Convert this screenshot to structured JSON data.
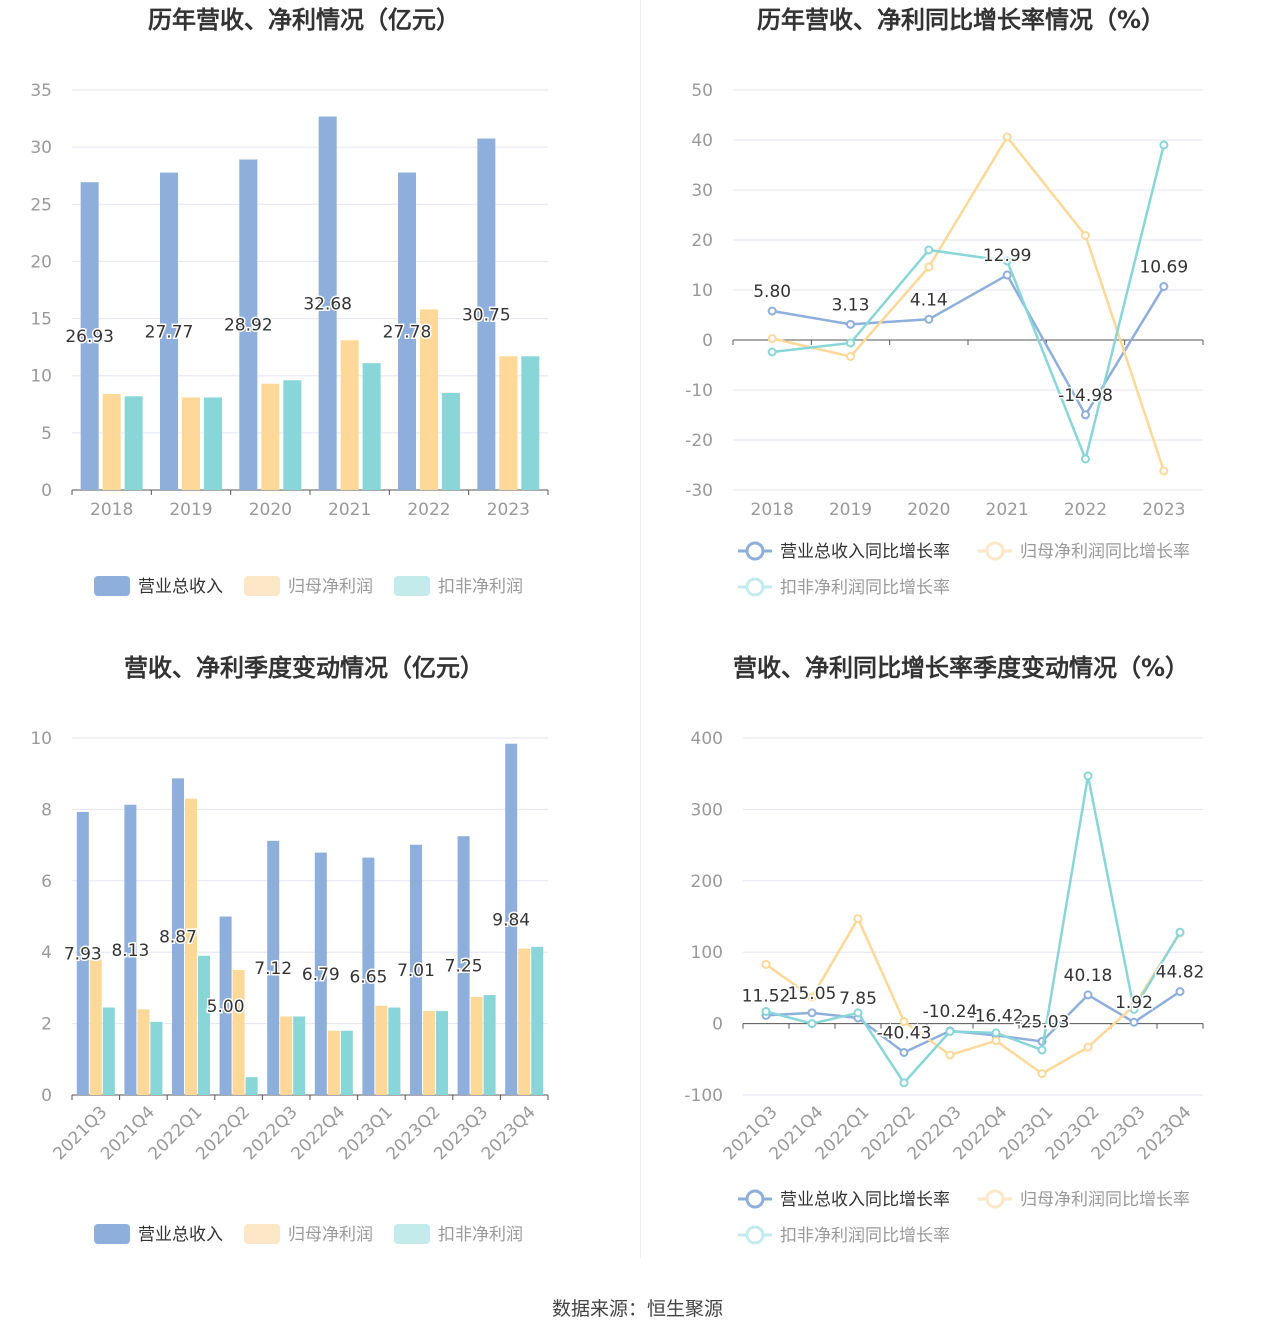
{
  "colors": {
    "revenue": "#8eaedc",
    "parent_profit": "#fdd898",
    "deducted_profit": "#88d6d8",
    "axis": "#555555",
    "grid": "#e2e6f0",
    "label": "#999999"
  },
  "source_text": "数据来源：恒生聚源",
  "chart_data": [
    {
      "type": "bar",
      "title": "历年营收、净利情况（亿元）",
      "categories": [
        "2018",
        "2019",
        "2020",
        "2021",
        "2022",
        "2023"
      ],
      "ylim": [
        0,
        35
      ],
      "yticks": [
        "0",
        "5",
        "10",
        "15",
        "20",
        "25",
        "30",
        "35"
      ],
      "series": [
        {
          "name": "营业总收入",
          "values": [
            26.93,
            27.77,
            28.92,
            32.68,
            27.78,
            30.75
          ],
          "labels": [
            "26.93",
            "27.77",
            "28.92",
            "32.68",
            "27.78",
            "30.75"
          ]
        },
        {
          "name": "归母净利润",
          "values": [
            8.4,
            8.1,
            9.3,
            13.1,
            15.8,
            11.7
          ]
        },
        {
          "name": "扣非净利润",
          "values": [
            8.2,
            8.1,
            9.6,
            11.1,
            8.5,
            11.7
          ]
        }
      ],
      "legend": "bottom",
      "grid": true
    },
    {
      "type": "line",
      "title": "历年营收、净利同比增长率情况（%）",
      "categories": [
        "2018",
        "2019",
        "2020",
        "2021",
        "2022",
        "2023"
      ],
      "ylim": [
        -30,
        50
      ],
      "yticks": [
        "-30",
        "-20",
        "-10",
        "0",
        "10",
        "20",
        "30",
        "40",
        "50"
      ],
      "series": [
        {
          "name": "营业总收入同比增长率",
          "values": [
            5.8,
            3.13,
            4.14,
            12.99,
            -14.98,
            10.69
          ],
          "labels": [
            "5.80",
            "3.13",
            "4.14",
            "12.99",
            "-14.98",
            "10.69"
          ]
        },
        {
          "name": "归母净利润同比增长率",
          "values": [
            0.3,
            -3.3,
            14.6,
            40.6,
            20.9,
            -26.2
          ]
        },
        {
          "name": "扣非净利润同比增长率",
          "values": [
            -2.4,
            -0.6,
            18.0,
            15.8,
            -23.8,
            39.0
          ]
        }
      ],
      "legend": "bottom",
      "grid": true
    },
    {
      "type": "bar",
      "title": "营收、净利季度变动情况（亿元）",
      "categories": [
        "2021Q3",
        "2021Q4",
        "2022Q1",
        "2022Q2",
        "2022Q3",
        "2022Q4",
        "2023Q1",
        "2023Q2",
        "2023Q3",
        "2023Q4"
      ],
      "ylim": [
        0,
        10
      ],
      "yticks": [
        "0",
        "2",
        "4",
        "6",
        "8",
        "10"
      ],
      "series": [
        {
          "name": "营业总收入",
          "values": [
            7.93,
            8.13,
            8.87,
            5.0,
            7.12,
            6.79,
            6.65,
            7.01,
            7.25,
            9.84
          ],
          "labels": [
            "7.93",
            "8.13",
            "8.87",
            "5.00",
            "7.12",
            "6.79",
            "6.65",
            "7.01",
            "7.25",
            "9.84"
          ]
        },
        {
          "name": "归母净利润",
          "values": [
            3.8,
            2.4,
            8.3,
            3.5,
            2.2,
            1.8,
            2.5,
            2.35,
            2.75,
            4.1
          ]
        },
        {
          "name": "扣非净利润",
          "values": [
            2.45,
            2.05,
            3.9,
            0.5,
            2.2,
            1.8,
            2.45,
            2.35,
            2.8,
            4.15
          ]
        }
      ],
      "legend": "bottom",
      "grid": true
    },
    {
      "type": "line",
      "title": "营收、净利同比增长率季度变动情况（%）",
      "categories": [
        "2021Q3",
        "2021Q4",
        "2022Q1",
        "2022Q2",
        "2022Q3",
        "2022Q4",
        "2023Q1",
        "2023Q2",
        "2023Q3",
        "2023Q4"
      ],
      "ylim": [
        -100,
        400
      ],
      "yticks": [
        "-100",
        "0",
        "100",
        "200",
        "300",
        "400"
      ],
      "series": [
        {
          "name": "营业总收入同比增长率",
          "values": [
            11.52,
            15.05,
            7.85,
            -40.43,
            -10.24,
            -16.42,
            -25.03,
            40.18,
            1.92,
            44.82
          ],
          "labels": [
            "11.52",
            "15.05",
            "7.85",
            "-40.43",
            "-10.24",
            "-16.42",
            "-25.03",
            "40.18",
            "1.92",
            "44.82"
          ]
        },
        {
          "name": "归母净利润同比增长率",
          "values": [
            83,
            37,
            147,
            3,
            -44,
            -24,
            -70,
            -33,
            25,
            127
          ]
        },
        {
          "name": "扣非净利润同比增长率",
          "values": [
            17,
            0,
            15,
            -83,
            -11,
            -13,
            -37,
            347,
            20,
            128
          ]
        }
      ],
      "legend": "bottom",
      "grid": true
    }
  ]
}
